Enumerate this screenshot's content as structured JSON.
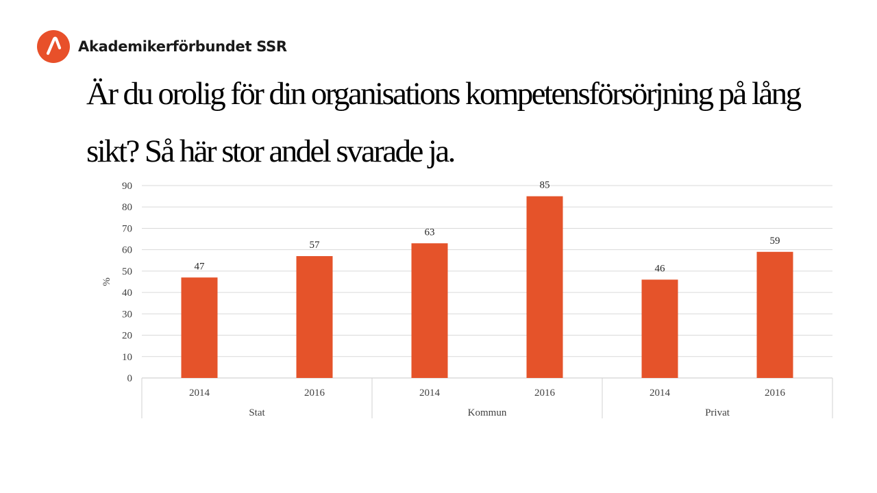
{
  "brand": {
    "name": "Akademikerförbundet SSR",
    "logo_color": "#e8502a"
  },
  "slide": {
    "title": "Är du orolig för din organisations kompetensförsörjning på lång sikt? Så här stor andel svarade ja."
  },
  "chart_data": {
    "type": "bar",
    "groups": [
      {
        "name": "Stat",
        "bars": [
          {
            "label": "2014",
            "value": 47
          },
          {
            "label": "2016",
            "value": 57
          }
        ]
      },
      {
        "name": "Kommun",
        "bars": [
          {
            "label": "2014",
            "value": 63
          },
          {
            "label": "2016",
            "value": 85
          }
        ]
      },
      {
        "name": "Privat",
        "bars": [
          {
            "label": "2014",
            "value": 46
          },
          {
            "label": "2016",
            "value": 59
          }
        ]
      }
    ],
    "ylabel": "%",
    "ylim": [
      0,
      90
    ],
    "yticks": [
      0,
      10,
      20,
      30,
      40,
      50,
      60,
      70,
      80,
      90
    ],
    "grid": true,
    "legend": "none",
    "bar_color": "#e5532a",
    "data_labels": true
  }
}
